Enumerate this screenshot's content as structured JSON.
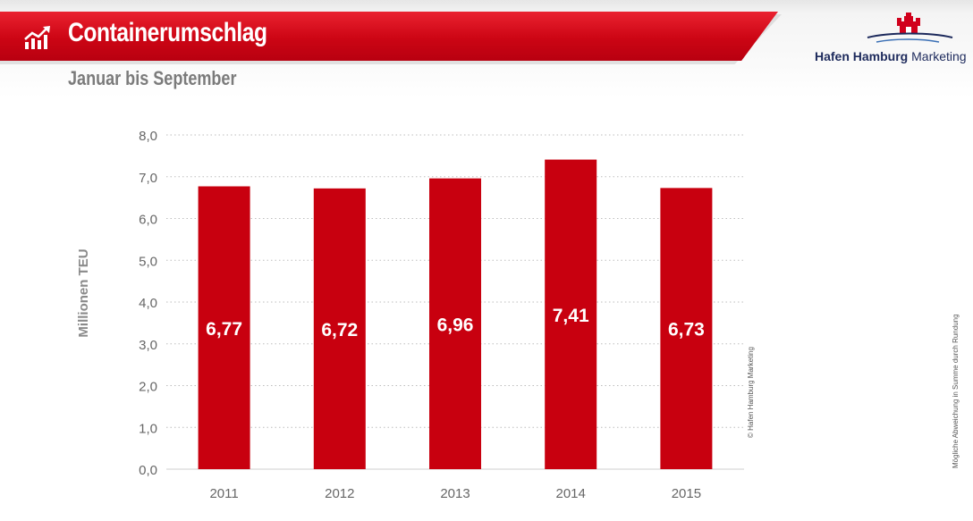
{
  "header": {
    "title": "Containerumschlag",
    "subtitle": "Januar bis September",
    "logo_text_bold": "Hafen Hamburg",
    "logo_text_regular": "Marketing"
  },
  "colors": {
    "accent": "#c8000f",
    "bar": "#c8000f",
    "axis_text": "#666666"
  },
  "chart_data": {
    "type": "bar",
    "categories": [
      "2011",
      "2012",
      "2013",
      "2014",
      "2015"
    ],
    "values": [
      6.77,
      6.72,
      6.96,
      7.41,
      6.73
    ],
    "value_labels": [
      "6,77",
      "6,72",
      "6,96",
      "7,41",
      "6,73"
    ],
    "ylabel": "Millionen TEU",
    "xlabel": "",
    "ylim": [
      0,
      8
    ],
    "yticks": [
      0,
      1,
      2,
      3,
      4,
      5,
      6,
      7,
      8
    ],
    "ytick_labels": [
      "0,0",
      "1,0",
      "2,0",
      "3,0",
      "4,0",
      "5,0",
      "6,0",
      "7,0",
      "8,0"
    ],
    "grid": true,
    "grid_style": "dotted",
    "data_label_position": "inside-middle"
  },
  "notes": {
    "copyright": "© Hafen Hamburg Marketing",
    "rounding": "Mögliche Abweichung in Summe durch Rundung"
  }
}
